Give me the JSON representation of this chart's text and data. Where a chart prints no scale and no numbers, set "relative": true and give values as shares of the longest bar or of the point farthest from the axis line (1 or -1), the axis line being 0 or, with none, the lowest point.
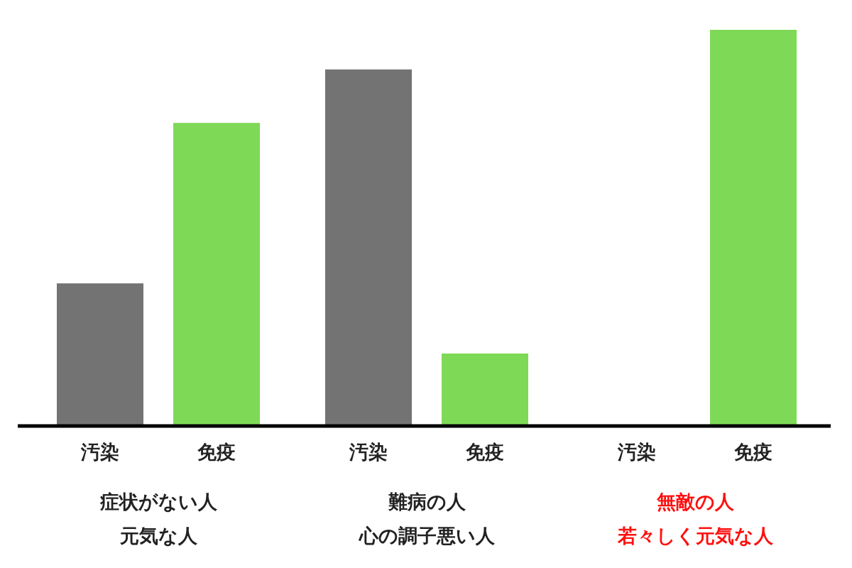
{
  "chart_data": {
    "type": "bar",
    "relative": true,
    "categories": [
      "汚染",
      "免疫",
      "汚染",
      "免疫",
      "汚染",
      "免疫"
    ],
    "values": [
      0.36,
      0.765,
      0.9,
      0.183,
      0,
      1
    ],
    "colors": [
      "#737373",
      "#7ed957",
      "#737373",
      "#7ed957",
      "#737373",
      "#7ed957"
    ],
    "annotations": [
      "症状がない人",
      "元気な人",
      "難病の人",
      "心の調子悪い人",
      "無敵の人",
      "若々しく元気な人"
    ]
  }
}
